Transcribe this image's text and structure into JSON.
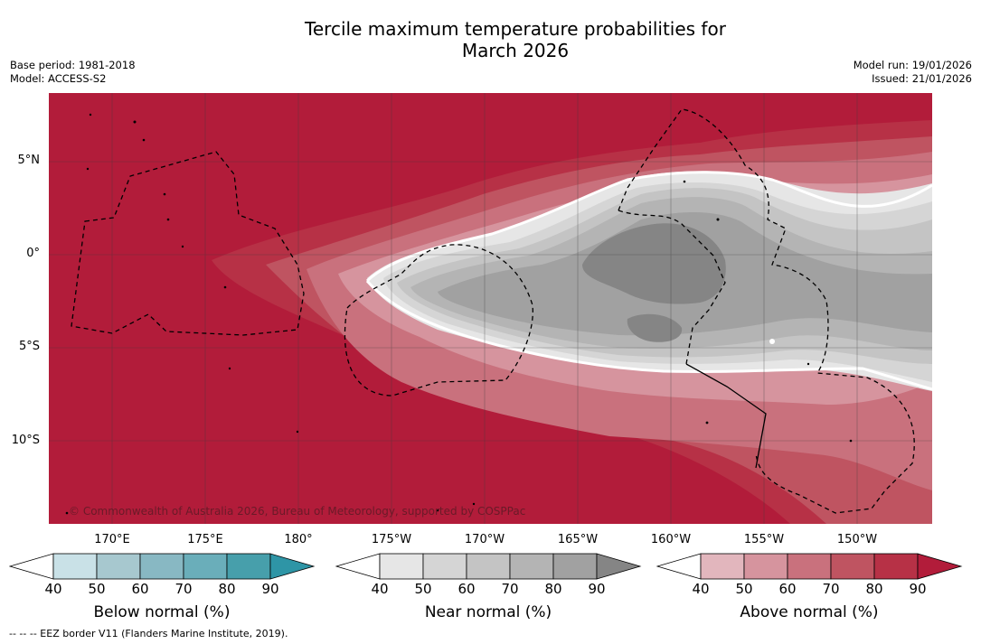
{
  "title_line1": "Tercile maximum temperature probabilities for",
  "title_line2": "March 2026",
  "meta_left": {
    "base_period": "Base period: 1981-2018",
    "model": "Model: ACCESS-S2"
  },
  "meta_right": {
    "model_run": "Model run: 19/01/2026",
    "issued": "Issued: 21/01/2026"
  },
  "map": {
    "lat_labels": [
      "5°N",
      "0°",
      "5°S",
      "10°S"
    ],
    "lon_labels": [
      "170°E",
      "175°E",
      "180°",
      "175°W",
      "170°W",
      "165°W",
      "160°W",
      "155°W",
      "150°W"
    ],
    "copyright": "© Commonwealth of Australia 2026, Bureau of Meteorology, supported by COSPPac"
  },
  "colorbars": {
    "below": {
      "title": "Below normal (%)",
      "ticks": [
        "40",
        "50",
        "60",
        "70",
        "80",
        "90"
      ],
      "colors": [
        "#ffffff",
        "#c9e1e7",
        "#a7c8cf",
        "#88b8c3",
        "#6aaeba",
        "#479fab",
        "#2e95a6"
      ]
    },
    "near": {
      "title": "Near normal (%)",
      "ticks": [
        "40",
        "50",
        "60",
        "70",
        "80",
        "90"
      ],
      "colors": [
        "#ffffff",
        "#e6e6e6",
        "#d5d5d5",
        "#c4c4c4",
        "#b4b4b4",
        "#a1a1a1",
        "#858585"
      ]
    },
    "above": {
      "title": "Above normal (%)",
      "ticks": [
        "40",
        "50",
        "60",
        "70",
        "80",
        "90"
      ],
      "colors": [
        "#ffffff",
        "#e2b6bd",
        "#d6949e",
        "#c9717d",
        "#bf5461",
        "#b73146",
        "#b21c3a"
      ]
    }
  },
  "footnote": "--  --  -- EEZ border V11 (Flanders Marine Institute, 2019)."
}
